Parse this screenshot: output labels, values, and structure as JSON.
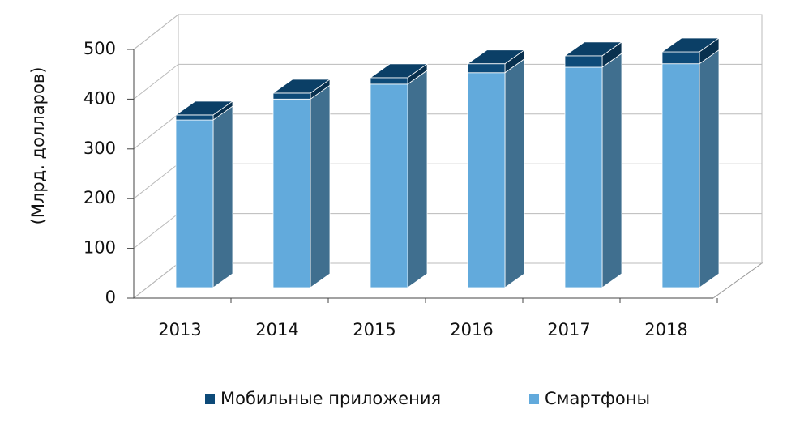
{
  "chart_data": {
    "type": "bar3d_stacked",
    "y_axis_label": "(Млрд. долларов)",
    "categories": [
      "2013",
      "2014",
      "2015",
      "2016",
      "2017",
      "2018"
    ],
    "series": [
      {
        "name": "Смартфоны",
        "color": "#62aadc",
        "values": [
          337,
          379,
          409,
          432,
          443,
          450
        ]
      },
      {
        "name": "Мобильные приложения",
        "color": "#0d4a78",
        "values": [
          10,
          12,
          13,
          18,
          23,
          24
        ]
      }
    ],
    "ylim": [
      0,
      500
    ],
    "yticks": [
      0,
      100,
      200,
      300,
      400,
      500
    ],
    "grid": true,
    "legend": "bottom"
  }
}
